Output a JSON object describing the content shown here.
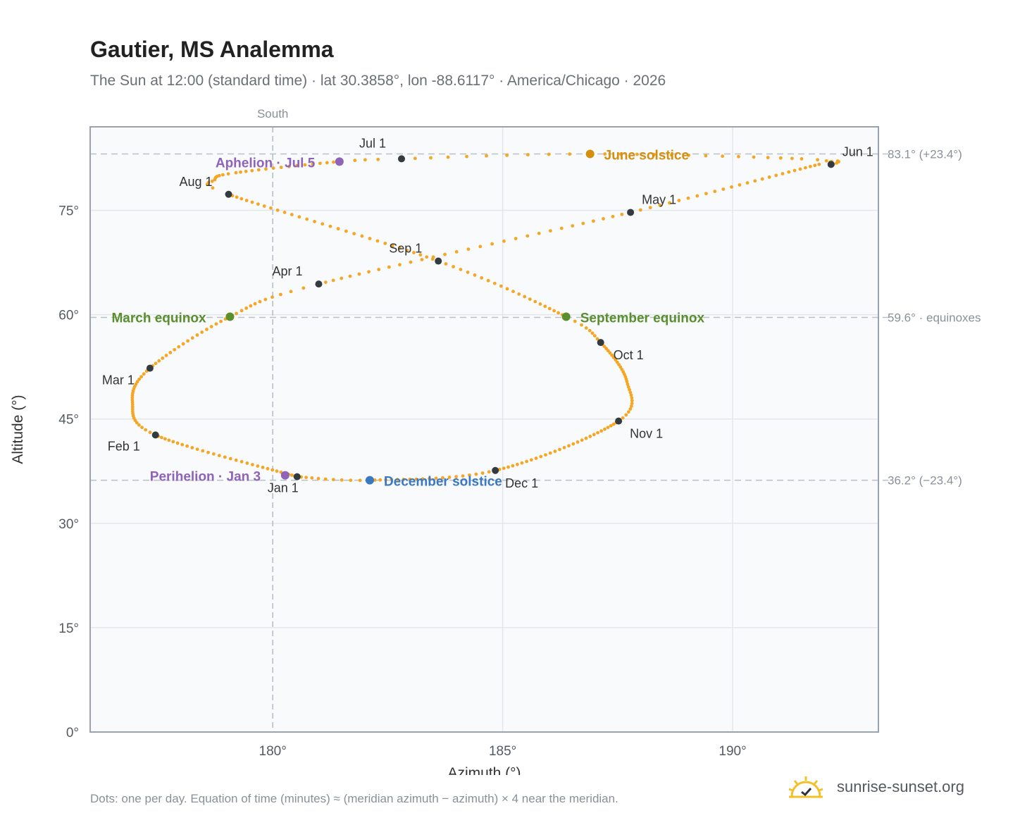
{
  "page": {
    "title": "Gautier, MS Analemma",
    "subtitle": "The Sun at 12:00 (standard time) · lat 30.3858°, lon -88.6117° · America/Chicago · 2026",
    "footnote": "Dots: one per day. Equation of time (minutes) ≈ (meridian azimuth − azimuth) × 4 near the meridian.",
    "brand": "sunrise-sunset.org"
  },
  "chart_data": {
    "type": "scatter",
    "xlabel": "Azimuth (°)",
    "ylabel": "Altitude (°)",
    "xlim": [
      176.03,
      193.17
    ],
    "ylim": [
      0,
      87
    ],
    "xticks": [
      {
        "value": 180,
        "label": "180°"
      },
      {
        "value": 185,
        "label": "185°"
      },
      {
        "value": 190,
        "label": "190°"
      }
    ],
    "yticks": [
      {
        "value": 0,
        "label": "0°"
      },
      {
        "value": 15,
        "label": "15°"
      },
      {
        "value": 30,
        "label": "30°"
      },
      {
        "value": 45,
        "label": "45°"
      },
      {
        "value": 60,
        "label": "60°"
      },
      {
        "value": 75,
        "label": "75°"
      }
    ],
    "grid": true,
    "meridian": {
      "azimuth": 180,
      "label": "South"
    },
    "reference_lines": [
      {
        "altitude": 83.1,
        "label": "83.1° (+23.4°)"
      },
      {
        "altitude": 59.6,
        "label": "59.6° · equinoxes"
      },
      {
        "altitude": 36.2,
        "label": "36.2° (−23.4°)"
      }
    ],
    "colors": {
      "path": "#f5a623",
      "month": "#333a40",
      "equinox": "#5b8f2e",
      "june_solstice": "#d4900c",
      "december_solstice": "#3a78c2",
      "apsis": "#8e63b8",
      "grid": "#e3e7ec",
      "plot_bg": "#f8fafc",
      "frame": "#9aa3ad"
    },
    "anchors": [
      {
        "day": 0,
        "az": 180.53,
        "alt": 36.7
      },
      {
        "day": 31,
        "az": 177.45,
        "alt": 42.7
      },
      {
        "day": 45,
        "az": 176.95,
        "alt": 47.4
      },
      {
        "day": 59,
        "az": 177.33,
        "alt": 52.3
      },
      {
        "day": 78,
        "az": 179.07,
        "alt": 59.7
      },
      {
        "day": 90,
        "az": 181.0,
        "alt": 64.4
      },
      {
        "day": 120,
        "az": 187.78,
        "alt": 74.7
      },
      {
        "day": 145,
        "az": 191.88,
        "alt": 81.6
      },
      {
        "day": 151,
        "az": 192.14,
        "alt": 81.6
      },
      {
        "day": 157,
        "az": 191.5,
        "alt": 82.4
      },
      {
        "day": 171,
        "az": 186.9,
        "alt": 83.1
      },
      {
        "day": 181,
        "az": 182.8,
        "alt": 82.4
      },
      {
        "day": 185,
        "az": 181.45,
        "alt": 82.0
      },
      {
        "day": 200,
        "az": 179.2,
        "alt": 80.4
      },
      {
        "day": 207,
        "az": 178.74,
        "alt": 79.4
      },
      {
        "day": 212,
        "az": 179.04,
        "alt": 77.3
      },
      {
        "day": 243,
        "az": 183.6,
        "alt": 67.7
      },
      {
        "day": 265,
        "az": 186.38,
        "alt": 59.7
      },
      {
        "day": 273,
        "az": 187.13,
        "alt": 56.0
      },
      {
        "day": 290,
        "az": 187.7,
        "alt": 50.4
      },
      {
        "day": 304,
        "az": 187.52,
        "alt": 44.7
      },
      {
        "day": 334,
        "az": 184.84,
        "alt": 37.6
      },
      {
        "day": 354,
        "az": 182.11,
        "alt": 36.2
      },
      {
        "day": 364,
        "az": 180.53,
        "alt": 36.7
      }
    ],
    "months": [
      {
        "label": "Jan 1",
        "az": 180.53,
        "alt": 36.7
      },
      {
        "label": "Feb 1",
        "az": 177.45,
        "alt": 42.7
      },
      {
        "label": "Mar 1",
        "az": 177.33,
        "alt": 52.3
      },
      {
        "label": "Apr 1",
        "az": 181.0,
        "alt": 64.4
      },
      {
        "label": "May 1",
        "az": 187.78,
        "alt": 74.7
      },
      {
        "label": "Jun 1",
        "az": 192.14,
        "alt": 81.6
      },
      {
        "label": "Jul 1",
        "az": 182.8,
        "alt": 82.4
      },
      {
        "label": "Aug 1",
        "az": 179.04,
        "alt": 77.3
      },
      {
        "label": "Sep 1",
        "az": 183.6,
        "alt": 67.7
      },
      {
        "label": "Oct 1",
        "az": 187.13,
        "alt": 56.0
      },
      {
        "label": "Nov 1",
        "az": 187.52,
        "alt": 44.7
      },
      {
        "label": "Dec 1",
        "az": 184.84,
        "alt": 37.6
      }
    ],
    "events": [
      {
        "label": "March equinox",
        "az": 179.07,
        "alt": 59.7,
        "kind": "equinox"
      },
      {
        "label": "September equinox",
        "az": 186.38,
        "alt": 59.7,
        "kind": "equinox"
      },
      {
        "label": "June solstice",
        "az": 186.9,
        "alt": 83.1,
        "kind": "june_solstice"
      },
      {
        "label": "December solstice",
        "az": 182.11,
        "alt": 36.2,
        "kind": "december_solstice"
      },
      {
        "label": "Aphelion · Jul 5",
        "az": 181.45,
        "alt": 82.0,
        "kind": "apsis"
      },
      {
        "label": "Perihelion · Jan 3",
        "az": 180.27,
        "alt": 36.9,
        "kind": "apsis"
      }
    ]
  }
}
